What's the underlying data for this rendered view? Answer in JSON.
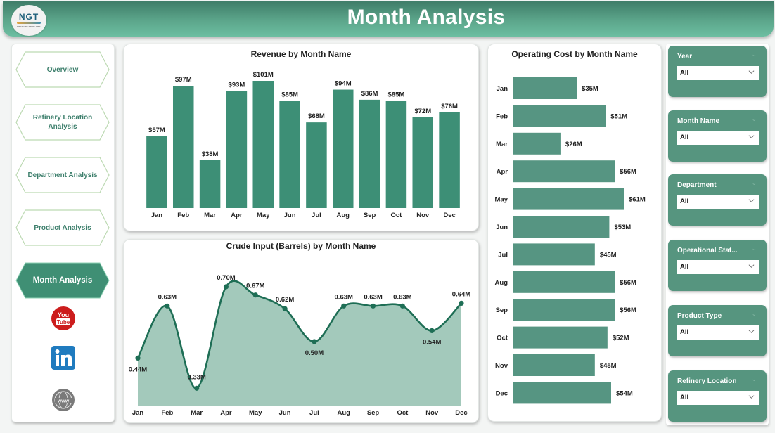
{
  "header": {
    "title": "Month Analysis",
    "logo_text": "NGT",
    "logo_tagline": "NEXT GEN TEMPLATES"
  },
  "nav": {
    "items": [
      {
        "label": "Overview",
        "active": false
      },
      {
        "label": "Refinery Location Analysis",
        "active": false
      },
      {
        "label": "Department Analysis",
        "active": false
      },
      {
        "label": "Product Analysis",
        "active": false
      },
      {
        "label": "Month Analysis",
        "active": true
      }
    ],
    "social": [
      {
        "name": "youtube-icon",
        "label": "You Tube"
      },
      {
        "name": "linkedin-icon",
        "label": "in"
      },
      {
        "name": "website-icon",
        "label": "www"
      }
    ]
  },
  "colors": {
    "brand": "#3f8f74",
    "bar_revenue": "#3d8f76",
    "bar_cost": "#569582",
    "line": "#1e6e55",
    "area": "#a3c9bb",
    "slicer_bg": "#56957f"
  },
  "slicers": [
    {
      "title": "Year",
      "value": "All"
    },
    {
      "title": "Month Name",
      "value": "All"
    },
    {
      "title": "Department",
      "value": "All"
    },
    {
      "title": "Operational Stat...",
      "value": "All"
    },
    {
      "title": "Product Type",
      "value": "All"
    },
    {
      "title": "Refinery Location",
      "value": "All"
    }
  ],
  "chart_data": [
    {
      "id": "revenue",
      "type": "bar",
      "title": "Revenue by Month Name",
      "categories": [
        "Jan",
        "Feb",
        "Mar",
        "Apr",
        "May",
        "Jun",
        "Jul",
        "Aug",
        "Sep",
        "Oct",
        "Nov",
        "Dec"
      ],
      "values": [
        57,
        97,
        38,
        93,
        101,
        85,
        68,
        94,
        86,
        85,
        72,
        76
      ],
      "labels": [
        "$57M",
        "$97M",
        "$38M",
        "$93M",
        "$101M",
        "$85M",
        "$68M",
        "$94M",
        "$86M",
        "$85M",
        "$72M",
        "$76M"
      ],
      "units": "$M",
      "ylim": [
        0,
        101
      ],
      "xlabel": "",
      "ylabel": "",
      "grid": false
    },
    {
      "id": "crude",
      "type": "area",
      "title": "Crude Input (Barrels) by Month Name",
      "categories": [
        "Jan",
        "Feb",
        "Mar",
        "Apr",
        "May",
        "Jun",
        "Jul",
        "Aug",
        "Sep",
        "Oct",
        "Nov",
        "Dec"
      ],
      "values": [
        0.44,
        0.63,
        0.33,
        0.7,
        0.67,
        0.62,
        0.5,
        0.63,
        0.63,
        0.63,
        0.54,
        0.64
      ],
      "labels": [
        "0.44M",
        "0.63M",
        "0.33M",
        "0.70M",
        "0.67M",
        "0.62M",
        "0.50M",
        "0.63M",
        "0.63M",
        "0.63M",
        "0.54M",
        "0.64M"
      ],
      "units": "M barrels",
      "ylim": [
        0.3,
        0.7
      ],
      "xlabel": "",
      "ylabel": "",
      "grid": false
    },
    {
      "id": "opcost",
      "type": "bar",
      "orientation": "horizontal",
      "title": "Operating Cost by Month Name",
      "categories": [
        "Jan",
        "Feb",
        "Mar",
        "Apr",
        "May",
        "Jun",
        "Jul",
        "Aug",
        "Sep",
        "Oct",
        "Nov",
        "Dec"
      ],
      "values": [
        35,
        51,
        26,
        56,
        61,
        53,
        45,
        56,
        56,
        52,
        45,
        54
      ],
      "labels": [
        "$35M",
        "$51M",
        "$26M",
        "$56M",
        "$61M",
        "$53M",
        "$45M",
        "$56M",
        "$56M",
        "$52M",
        "$45M",
        "$54M"
      ],
      "units": "$M",
      "xlim": [
        0,
        61
      ],
      "xlabel": "",
      "ylabel": "",
      "grid": false
    }
  ]
}
